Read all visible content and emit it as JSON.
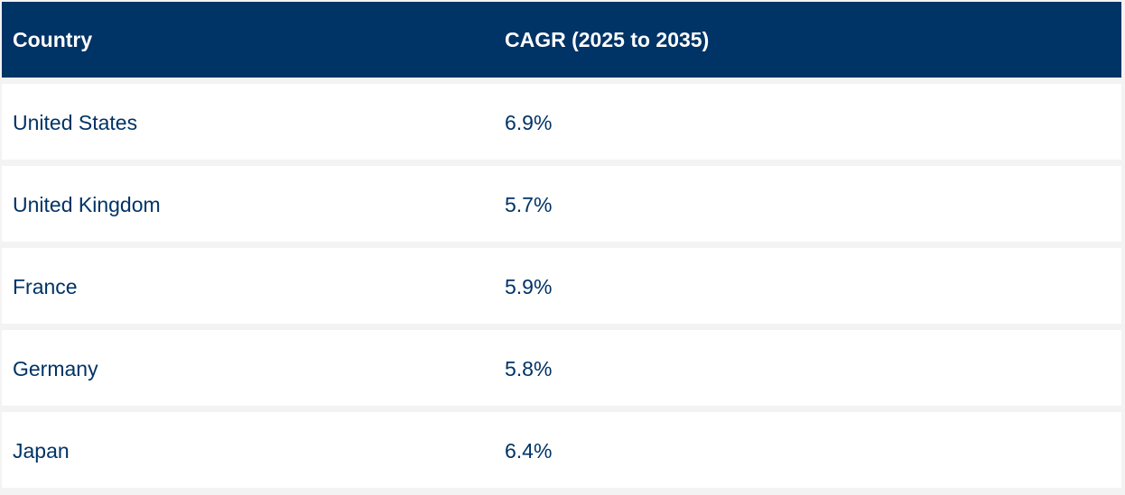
{
  "table": {
    "headers": [
      "Country",
      "CAGR (2025 to 2035)"
    ],
    "rows": [
      {
        "country": "United States",
        "cagr": "6.9%"
      },
      {
        "country": "United Kingdom",
        "cagr": "5.7%"
      },
      {
        "country": "France",
        "cagr": "5.9%"
      },
      {
        "country": "Germany",
        "cagr": "5.8%"
      },
      {
        "country": "Japan",
        "cagr": "6.4%"
      }
    ]
  },
  "colors": {
    "header_background": "#003366",
    "header_text": "#ffffff",
    "body_text": "#003366",
    "row_background": "#ffffff",
    "row_separator": "#f3f3f3"
  }
}
